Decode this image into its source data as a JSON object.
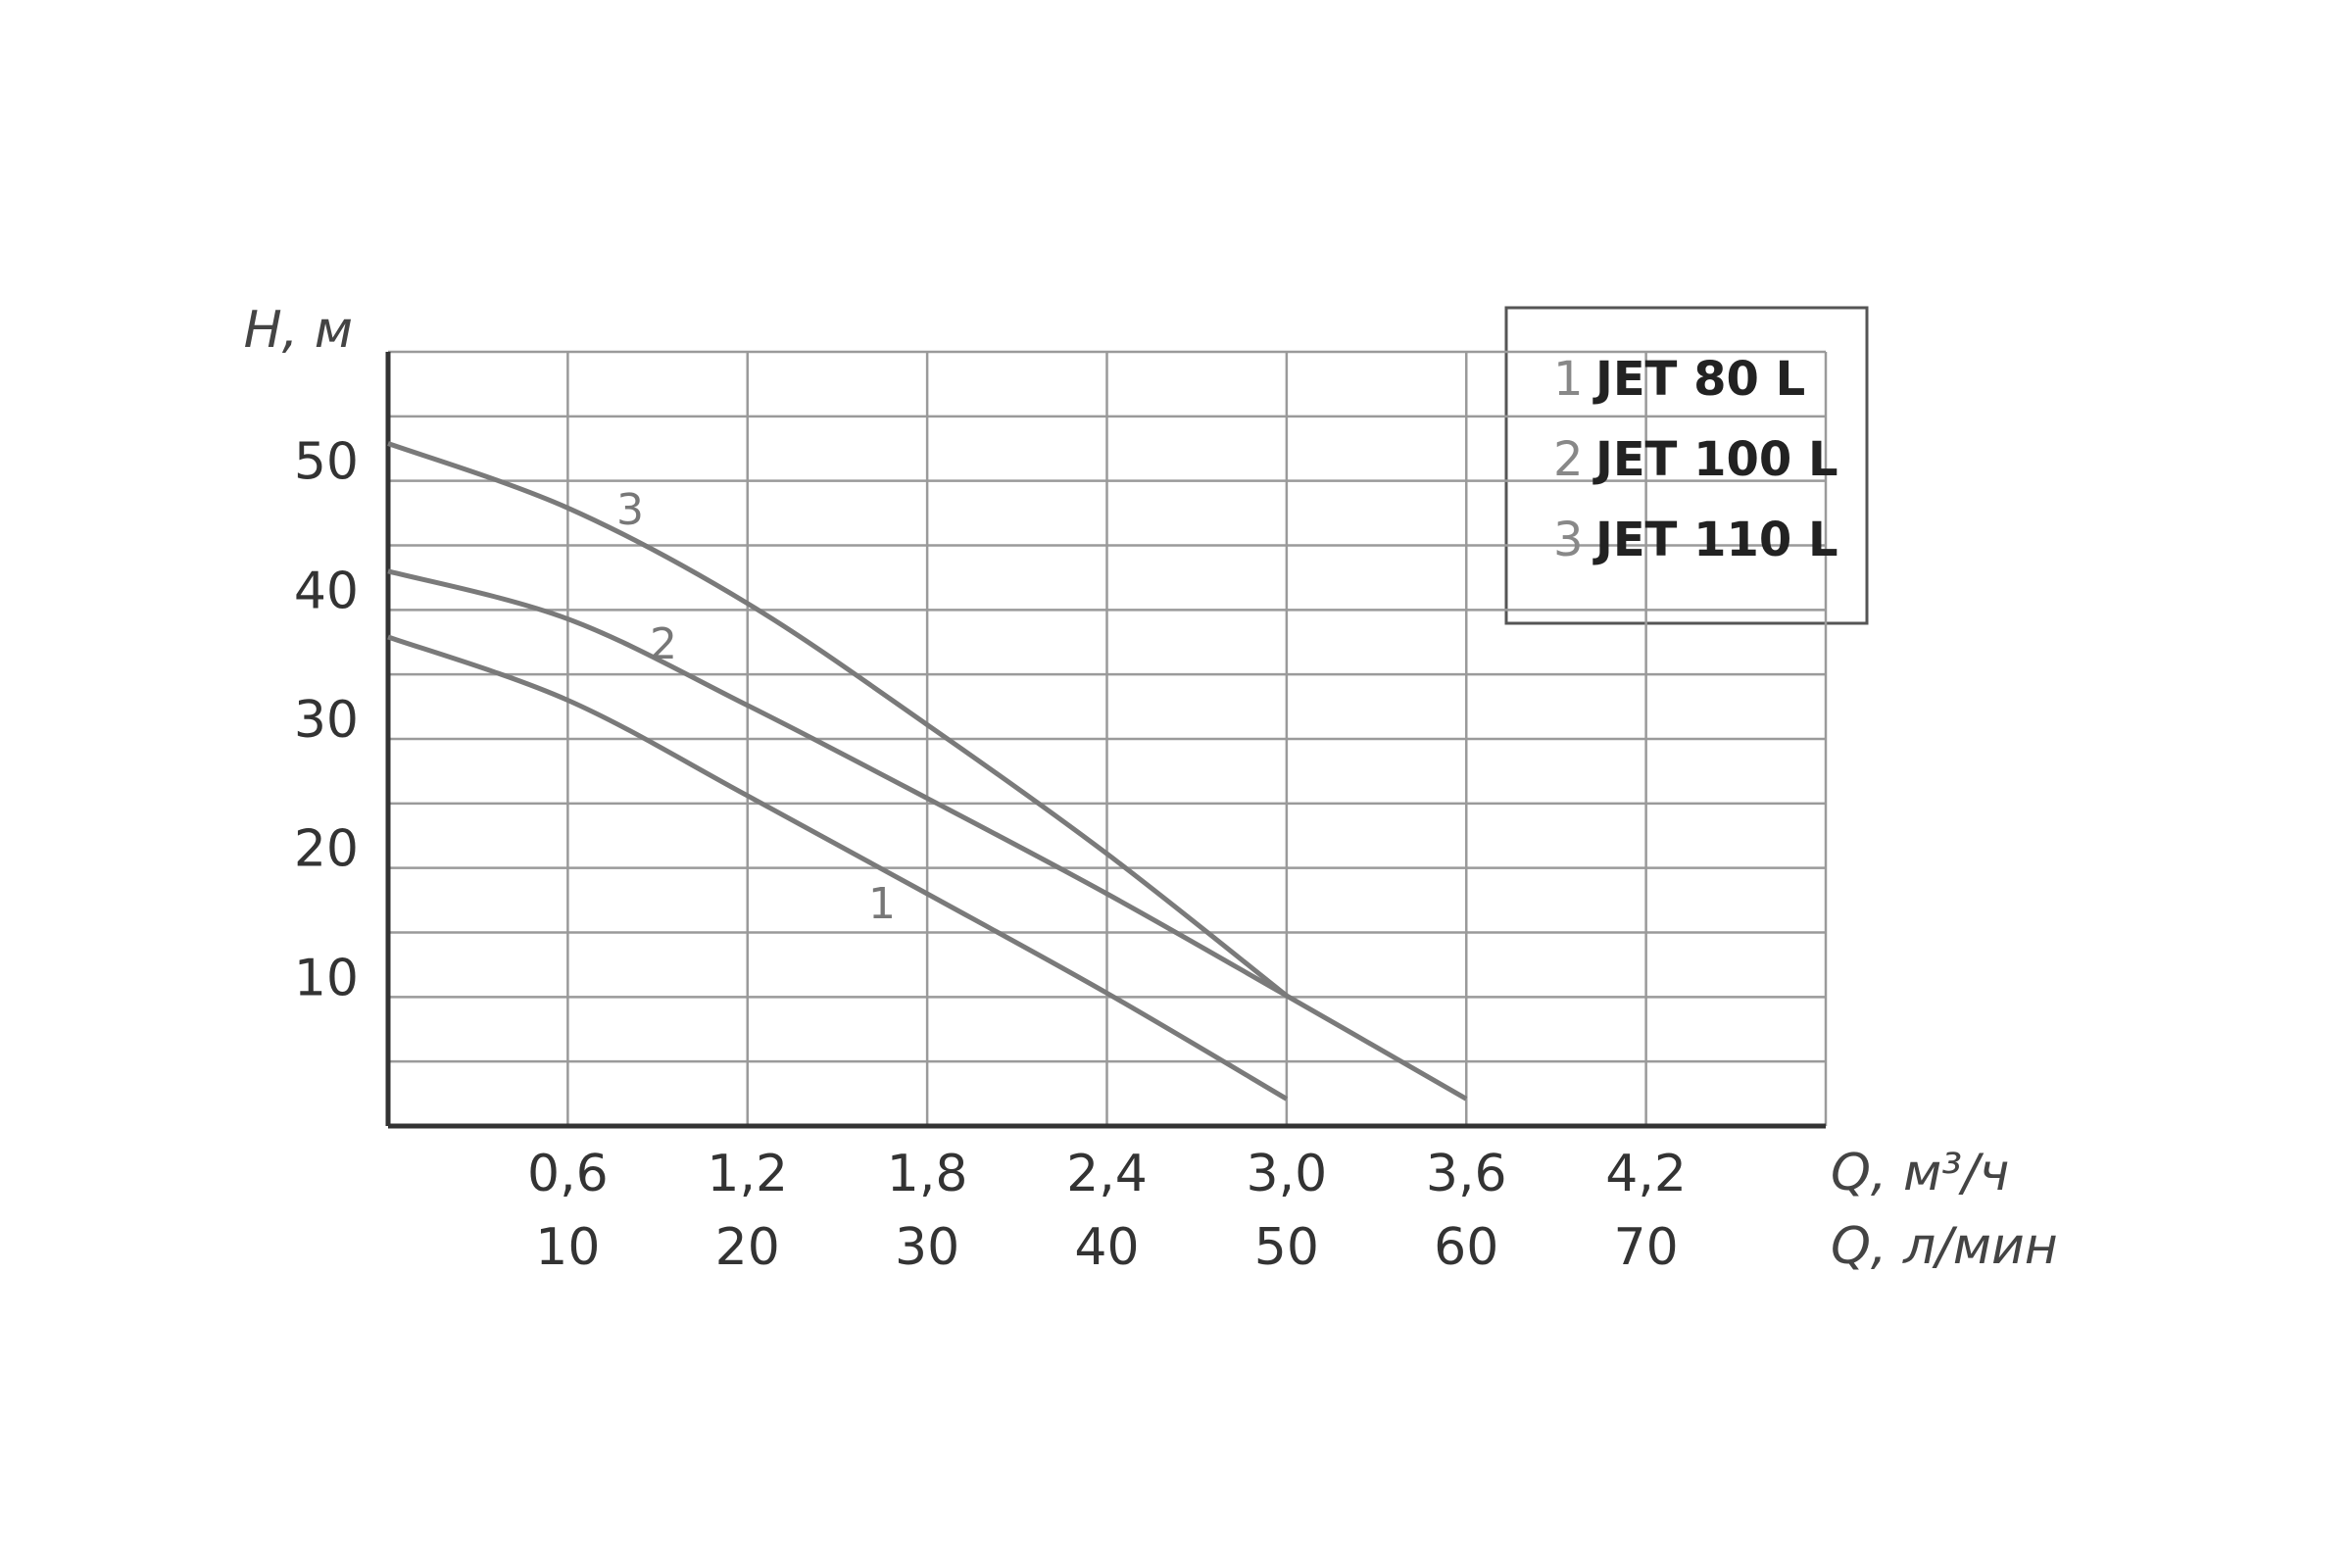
{
  "chart_data": {
    "type": "line",
    "y_label": "H, м",
    "x_label": "Q, м³/ч",
    "x2_label": "Q, л/мин",
    "x": [
      0,
      0.6,
      1.2,
      1.8,
      2.4,
      3.0,
      3.6
    ],
    "series": [
      {
        "name": "JET 80 L",
        "label": "1",
        "color": "#7a7a7a",
        "values": [
          37.9,
          33.0,
          25.6,
          18.0,
          10.3,
          2.1,
          null
        ]
      },
      {
        "name": "JET 100 L",
        "label": "2",
        "color": "#7a7a7a",
        "values": [
          43.0,
          39.3,
          32.6,
          25.4,
          18.0,
          10.1,
          2.1
        ]
      },
      {
        "name": "JET 110 L",
        "label": "3",
        "color": "#7a7a7a",
        "values": [
          52.9,
          47.9,
          40.5,
          31.1,
          21.1,
          10.1,
          null
        ]
      }
    ],
    "xlim": [
      0,
      4.8
    ],
    "xticks": [
      {
        "value": 0.6,
        "label": "0,6"
      },
      {
        "value": 1.2,
        "label": "1,2"
      },
      {
        "value": 1.8,
        "label": "1,8"
      },
      {
        "value": 2.4,
        "label": "2,4"
      },
      {
        "value": 3.0,
        "label": "3,0"
      },
      {
        "value": 3.6,
        "label": "3,6"
      },
      {
        "value": 4.2,
        "label": "4,2"
      }
    ],
    "x2lim": [
      0,
      80
    ],
    "x2ticks": [
      10,
      20,
      30,
      40,
      50,
      60,
      70
    ],
    "ylim": [
      0,
      60
    ],
    "yticks": [
      10,
      20,
      30,
      40,
      50
    ],
    "y_minor_grid": [
      5,
      15,
      25,
      35,
      45,
      55,
      60
    ],
    "grid": true,
    "legend": "upper right"
  }
}
